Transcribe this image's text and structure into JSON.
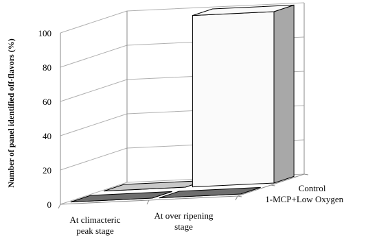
{
  "chart_data": {
    "type": "bar",
    "view": "3d-clustered-column",
    "ylabel": "Number  of panel identified off-flavors (%)",
    "xlabel": "",
    "ylim": [
      0,
      100
    ],
    "yticks": [
      0,
      20,
      40,
      60,
      80,
      100
    ],
    "categories": [
      [
        "At climacteric",
        "peak stage"
      ],
      [
        "At over ripening",
        "stage"
      ]
    ],
    "series": [
      {
        "name": "Control",
        "values": [
          0,
          100
        ],
        "color": "#c8c8c8"
      },
      {
        "name": "1-MCP+Low Oxygen",
        "values": [
          0,
          0
        ],
        "color": "#6e6e6e"
      }
    ],
    "grid": true,
    "legend": "depth-axis-right"
  }
}
